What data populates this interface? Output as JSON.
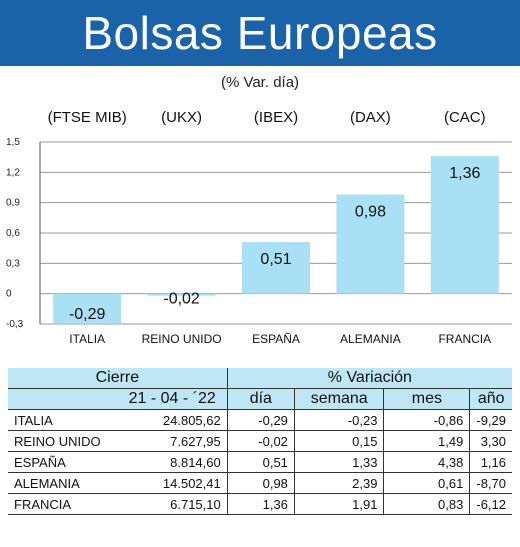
{
  "header": {
    "title": "Bolsas Europeas",
    "subtitle": "(% Var. día)"
  },
  "colors": {
    "header_bg": "#1a63a8",
    "bar": "#a9e0f5",
    "table_header_bg": "#bfe6f5"
  },
  "chart_data": {
    "type": "bar",
    "categories": [
      "ITALIA",
      "REINO UNIDO",
      "ESPAÑA",
      "ALEMANIA",
      "FRANCIA"
    ],
    "index_labels": [
      "(FTSE MIB)",
      "(UKX)",
      "(IBEX)",
      "(DAX)",
      "(CAC)"
    ],
    "values": [
      -0.29,
      -0.02,
      0.51,
      0.98,
      1.36
    ],
    "value_labels": [
      "-0,29",
      "-0,02",
      "0,51",
      "0,98",
      "1,36"
    ],
    "ylim": [
      -0.3,
      1.5
    ],
    "yticks": [
      -0.3,
      0,
      0.3,
      0.6,
      0.9,
      1.2,
      1.5
    ],
    "ytick_labels": [
      "-0,3",
      "0",
      "0,3",
      "0,6",
      "0,9",
      "1,2",
      "1,5"
    ],
    "grid": true
  },
  "table": {
    "header_row1": [
      "Cierre",
      "% Variación"
    ],
    "header_row2": [
      "21 - 04 - ´22",
      "día",
      "semana",
      "mes",
      "año"
    ],
    "rows": [
      [
        "ITALIA",
        "24.805,62",
        "-0,29",
        "-0,23",
        "-0,86",
        "-9,29"
      ],
      [
        "REINO UNIDO",
        "7.627,95",
        "-0,02",
        "0,15",
        "1,49",
        "3,30"
      ],
      [
        "ESPAÑA",
        "8.814,60",
        "0,51",
        "1,33",
        "4,38",
        "1,16"
      ],
      [
        "ALEMANIA",
        "14.502,41",
        "0,98",
        "2,39",
        "0,61",
        "-8,70"
      ],
      [
        "FRANCIA",
        "6.715,10",
        "1,36",
        "1,91",
        "0,83",
        "-6,12"
      ]
    ]
  }
}
